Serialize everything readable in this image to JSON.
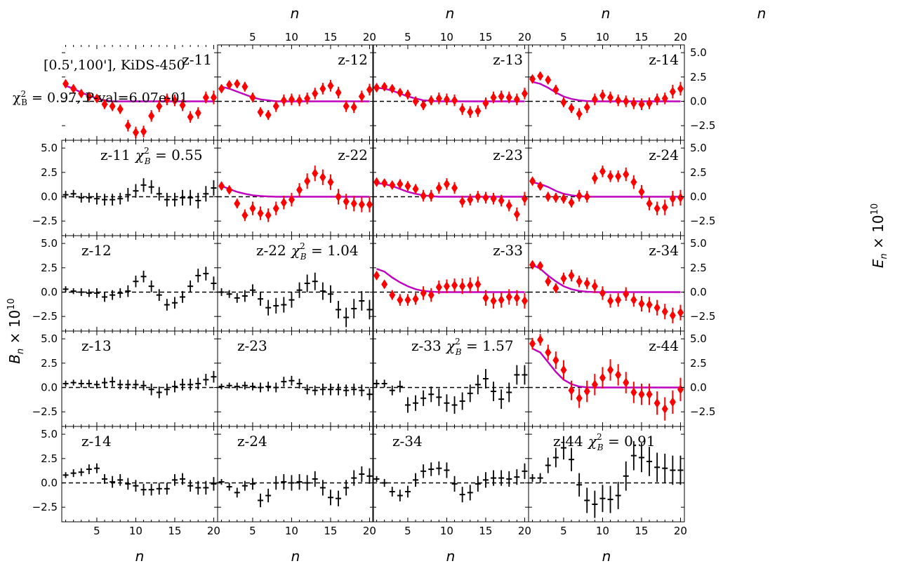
{
  "info": {
    "range_label": "[0.5',100'],  KiDS-450",
    "chi2_label": "χ²_B = 0.97, P-val=6.07e-01"
  },
  "axes": {
    "x_label": "n",
    "left_y_label": "B_n × 10^10",
    "right_y_label": "E_n × 10^10",
    "x_ticks": [
      5,
      10,
      15,
      20
    ],
    "y_ticks": [
      "5.0",
      "2.5",
      "0.0",
      "−2.5"
    ]
  },
  "colors": {
    "e_mode": "#ff0000",
    "b_mode": "#000000",
    "model": "#bf00bf",
    "zero_line": "#000000"
  },
  "chart_data": {
    "type": "scatter",
    "x": [
      1,
      2,
      3,
      4,
      5,
      6,
      7,
      8,
      9,
      10,
      11,
      12,
      13,
      14,
      15,
      16,
      17,
      18,
      19,
      20
    ],
    "xlim": [
      0.5,
      20.5
    ],
    "ylim": [
      -4.0,
      5.8
    ],
    "e_mode_panels": [
      {
        "label": "z-11",
        "row": 0,
        "col": 0,
        "values": [
          1.8,
          1.3,
          0.8,
          0.5,
          0.3,
          -0.3,
          -0.5,
          -0.8,
          -2.5,
          -3.2,
          -3.1,
          -1.5,
          -0.5,
          0.2,
          0.1,
          -0.4,
          -1.6,
          -1.2,
          0.4,
          0.4
        ],
        "errors": [
          0.4,
          0.4,
          0.4,
          0.4,
          0.4,
          0.5,
          0.5,
          0.5,
          0.6,
          0.6,
          0.6,
          0.6,
          0.6,
          0.6,
          0.6,
          0.6,
          0.6,
          0.6,
          0.6,
          0.7
        ],
        "model": [
          1.6,
          1.3,
          0.9,
          0.6,
          0.3,
          0.1,
          0.0,
          0,
          0,
          0,
          0,
          0,
          0,
          0,
          0,
          0,
          0,
          0,
          0,
          0
        ]
      },
      {
        "label": "z-12",
        "row": 0,
        "col": 1,
        "values": [
          1.3,
          1.7,
          1.8,
          1.5,
          0.4,
          -1.1,
          -1.4,
          -0.5,
          0.1,
          0.2,
          0.1,
          0.3,
          0.8,
          1.3,
          1.6,
          0.9,
          -0.5,
          -0.6,
          0.5,
          1.2
        ],
        "errors": [
          0.4,
          0.4,
          0.4,
          0.5,
          0.5,
          0.5,
          0.5,
          0.6,
          0.6,
          0.6,
          0.6,
          0.6,
          0.6,
          0.6,
          0.6,
          0.6,
          0.6,
          0.6,
          0.6,
          0.6
        ],
        "model": [
          1.5,
          1.3,
          1.0,
          0.7,
          0.4,
          0.2,
          0.1,
          0,
          0,
          0,
          0,
          0,
          0,
          0,
          0,
          0,
          0,
          0,
          0,
          0
        ]
      },
      {
        "label": "z-13",
        "row": 0,
        "col": 2,
        "values": [
          1.4,
          1.5,
          1.3,
          0.9,
          0.7,
          0.0,
          -0.4,
          0.1,
          0.3,
          0.2,
          0.1,
          -0.8,
          -1.1,
          -1.0,
          -0.2,
          0.4,
          0.5,
          0.4,
          0.2,
          0.8
        ],
        "errors": [
          0.4,
          0.4,
          0.4,
          0.4,
          0.5,
          0.5,
          0.5,
          0.5,
          0.6,
          0.6,
          0.6,
          0.6,
          0.6,
          0.6,
          0.6,
          0.6,
          0.6,
          0.6,
          0.6,
          0.6
        ],
        "model": [
          1.4,
          1.3,
          1.1,
          0.8,
          0.5,
          0.3,
          0.1,
          0.05,
          0,
          0,
          0,
          0,
          0,
          0,
          0,
          0,
          0,
          0,
          0,
          0
        ]
      },
      {
        "label": "z-14",
        "row": 0,
        "col": 3,
        "values": [
          2.3,
          2.6,
          2.2,
          1.2,
          -0.1,
          -0.7,
          -1.3,
          -0.6,
          0.2,
          0.6,
          0.4,
          0.1,
          0.0,
          -0.2,
          -0.3,
          -0.2,
          0.2,
          0.3,
          1.0,
          1.3
        ],
        "errors": [
          0.4,
          0.4,
          0.4,
          0.5,
          0.5,
          0.5,
          0.6,
          0.6,
          0.6,
          0.6,
          0.6,
          0.6,
          0.6,
          0.6,
          0.6,
          0.6,
          0.6,
          0.6,
          0.7,
          0.7
        ],
        "model": [
          2.0,
          1.8,
          1.4,
          0.9,
          0.5,
          0.25,
          0.1,
          0.03,
          0,
          0,
          0,
          0,
          0,
          0,
          0,
          0,
          0,
          0,
          0,
          0
        ]
      },
      {
        "label": "z-22",
        "row": 1,
        "col": 1,
        "values": [
          1.1,
          0.7,
          -0.7,
          -1.9,
          -1.2,
          -1.7,
          -1.9,
          -1.2,
          -0.6,
          -0.3,
          0.7,
          1.6,
          2.4,
          2.0,
          1.5,
          0.0,
          -0.5,
          -0.7,
          -0.8,
          -0.8
        ],
        "errors": [
          0.4,
          0.4,
          0.5,
          0.6,
          0.7,
          0.7,
          0.7,
          0.7,
          0.7,
          0.7,
          0.7,
          0.8,
          0.8,
          0.8,
          0.8,
          0.8,
          0.8,
          0.8,
          0.8,
          0.8
        ],
        "model": [
          1.1,
          0.8,
          0.5,
          0.3,
          0.15,
          0.07,
          0.03,
          0,
          0,
          0,
          0,
          0,
          0,
          0,
          0,
          0,
          0,
          0,
          0,
          0
        ]
      },
      {
        "label": "z-23",
        "row": 1,
        "col": 2,
        "values": [
          1.5,
          1.4,
          1.2,
          1.3,
          1.1,
          0.8,
          0.1,
          0.1,
          0.9,
          1.3,
          0.9,
          -0.5,
          -0.3,
          0.0,
          -0.1,
          -0.2,
          -0.4,
          -0.9,
          -1.8,
          -0.2
        ],
        "errors": [
          0.4,
          0.4,
          0.4,
          0.5,
          0.5,
          0.5,
          0.6,
          0.6,
          0.6,
          0.6,
          0.6,
          0.6,
          0.6,
          0.6,
          0.6,
          0.6,
          0.6,
          0.6,
          0.7,
          0.7
        ],
        "model": [
          1.4,
          1.3,
          1.1,
          0.8,
          0.5,
          0.3,
          0.15,
          0.05,
          0,
          0,
          0,
          0,
          0,
          0,
          0,
          0,
          0,
          0,
          0,
          0
        ]
      },
      {
        "label": "z-24",
        "row": 1,
        "col": 3,
        "values": [
          1.6,
          1.1,
          0.0,
          -0.1,
          -0.2,
          -0.6,
          0.1,
          0.0,
          1.9,
          2.6,
          2.1,
          2.1,
          2.3,
          1.5,
          0.5,
          -0.7,
          -1.2,
          -1.1,
          -0.2,
          -0.1
        ],
        "errors": [
          0.4,
          0.4,
          0.5,
          0.5,
          0.5,
          0.5,
          0.6,
          0.6,
          0.6,
          0.6,
          0.6,
          0.6,
          0.7,
          0.7,
          0.7,
          0.7,
          0.7,
          0.8,
          0.8,
          0.8
        ],
        "model": [
          1.5,
          1.3,
          1.0,
          0.6,
          0.3,
          0.15,
          0.05,
          0,
          0,
          0,
          0,
          0,
          0,
          0,
          0,
          0,
          0,
          0,
          0,
          0
        ]
      },
      {
        "label": "z-33",
        "row": 2,
        "col": 2,
        "values": [
          1.7,
          0.8,
          -0.3,
          -0.8,
          -0.8,
          -0.7,
          -0.1,
          -0.3,
          0.5,
          0.6,
          0.7,
          0.6,
          0.7,
          0.8,
          -0.6,
          -0.9,
          -0.8,
          -0.5,
          -0.6,
          -0.9
        ],
        "errors": [
          0.4,
          0.4,
          0.5,
          0.6,
          0.6,
          0.6,
          0.7,
          0.7,
          0.7,
          0.7,
          0.7,
          0.8,
          0.8,
          0.8,
          0.8,
          0.8,
          0.8,
          0.8,
          0.8,
          0.8
        ],
        "model": [
          2.4,
          2.1,
          1.5,
          1.0,
          0.6,
          0.3,
          0.12,
          0.05,
          0,
          0,
          0,
          0,
          0,
          0,
          0,
          0,
          0,
          0,
          0,
          0
        ]
      },
      {
        "label": "z-34",
        "row": 2,
        "col": 3,
        "values": [
          2.8,
          2.7,
          1.1,
          0.4,
          1.4,
          1.7,
          1.1,
          0.9,
          0.6,
          -0.1,
          -0.9,
          -0.8,
          -0.2,
          -0.8,
          -1.2,
          -1.3,
          -1.6,
          -2.0,
          -2.4,
          -2.1
        ],
        "errors": [
          0.4,
          0.4,
          0.5,
          0.5,
          0.6,
          0.6,
          0.6,
          0.6,
          0.7,
          0.7,
          0.7,
          0.7,
          0.7,
          0.7,
          0.8,
          0.8,
          0.8,
          0.8,
          0.8,
          0.8
        ],
        "model": [
          2.8,
          2.4,
          1.7,
          1.1,
          0.6,
          0.3,
          0.12,
          0.04,
          0,
          0,
          0,
          0,
          0,
          0,
          0,
          0,
          0,
          0,
          0,
          0
        ]
      },
      {
        "label": "z-44",
        "row": 3,
        "col": 3,
        "values": [
          4.5,
          4.9,
          3.6,
          2.8,
          1.8,
          -0.3,
          -1.1,
          -0.4,
          0.3,
          1.0,
          1.8,
          1.3,
          0.5,
          -0.5,
          -0.7,
          -0.7,
          -1.6,
          -2.2,
          -1.5,
          -0.2
        ],
        "errors": [
          0.6,
          0.6,
          0.8,
          0.9,
          1.0,
          1.0,
          1.0,
          1.1,
          1.1,
          1.1,
          1.1,
          1.1,
          1.1,
          1.1,
          1.1,
          1.1,
          1.2,
          1.2,
          1.2,
          1.2
        ],
        "model": [
          4.0,
          3.6,
          2.6,
          1.6,
          0.8,
          0.35,
          0.1,
          0.02,
          0,
          0,
          0,
          0,
          0,
          0,
          0,
          0,
          0,
          0,
          0,
          0
        ]
      }
    ],
    "b_mode_panels": [
      {
        "label": "z-11",
        "chi2": "0.55",
        "row": 1,
        "col": 0,
        "values": [
          0.2,
          0.3,
          -0.1,
          -0.1,
          -0.2,
          -0.3,
          -0.3,
          -0.2,
          0.2,
          0.6,
          1.2,
          1.0,
          0.3,
          -0.3,
          -0.3,
          -0.1,
          -0.1,
          -0.4,
          0.3,
          0.9
        ],
        "errors": [
          0.4,
          0.4,
          0.5,
          0.5,
          0.6,
          0.6,
          0.6,
          0.6,
          0.7,
          0.7,
          0.7,
          0.7,
          0.7,
          0.7,
          0.7,
          0.8,
          0.8,
          0.8,
          0.8,
          0.8
        ]
      },
      {
        "label": "z-12",
        "row": 2,
        "col": 0,
        "values": [
          0.3,
          0.1,
          0.0,
          -0.1,
          -0.1,
          -0.5,
          -0.3,
          -0.1,
          0.1,
          1.1,
          1.6,
          0.6,
          -0.3,
          -1.3,
          -1.1,
          -0.5,
          0.6,
          1.7,
          1.9,
          0.9
        ],
        "errors": [
          0.3,
          0.3,
          0.4,
          0.4,
          0.5,
          0.5,
          0.5,
          0.5,
          0.6,
          0.6,
          0.6,
          0.6,
          0.6,
          0.6,
          0.6,
          0.6,
          0.6,
          0.7,
          0.7,
          0.7
        ]
      },
      {
        "label": "z-22",
        "chi2": "1.04",
        "row": 2,
        "col": 1,
        "values": [
          0.0,
          -0.2,
          -0.6,
          -0.4,
          0.2,
          -0.7,
          -1.6,
          -1.4,
          -1.3,
          -0.8,
          0.2,
          0.9,
          1.1,
          0.1,
          -0.2,
          -1.8,
          -2.6,
          -1.7,
          -0.9,
          -1.8
        ],
        "errors": [
          0.4,
          0.4,
          0.5,
          0.6,
          0.6,
          0.7,
          0.8,
          0.8,
          0.8,
          0.8,
          0.8,
          0.9,
          0.9,
          0.9,
          0.9,
          0.9,
          1.0,
          1.0,
          1.0,
          1.0
        ]
      },
      {
        "label": "z-13",
        "row": 3,
        "col": 0,
        "values": [
          0.4,
          0.5,
          0.4,
          0.4,
          0.3,
          0.5,
          0.6,
          0.3,
          0.3,
          0.3,
          0.2,
          -0.2,
          -0.5,
          -0.2,
          0.1,
          0.3,
          0.3,
          0.4,
          0.8,
          1.1
        ],
        "errors": [
          0.3,
          0.3,
          0.4,
          0.4,
          0.4,
          0.5,
          0.5,
          0.5,
          0.5,
          0.5,
          0.5,
          0.6,
          0.6,
          0.6,
          0.6,
          0.6,
          0.6,
          0.6,
          0.6,
          0.6
        ]
      },
      {
        "label": "z-23",
        "row": 3,
        "col": 1,
        "values": [
          0.1,
          0.2,
          0.1,
          0.2,
          0.1,
          0.0,
          0.1,
          0.0,
          0.6,
          0.7,
          0.4,
          -0.2,
          -0.3,
          -0.2,
          -0.2,
          -0.2,
          -0.3,
          -0.2,
          -0.3,
          -0.7
        ],
        "errors": [
          0.3,
          0.3,
          0.4,
          0.4,
          0.4,
          0.5,
          0.5,
          0.5,
          0.5,
          0.5,
          0.5,
          0.5,
          0.5,
          0.6,
          0.6,
          0.6,
          0.6,
          0.6,
          0.6,
          0.6
        ]
      },
      {
        "label": "z-33",
        "chi2": "1.57",
        "row": 3,
        "col": 2,
        "values": [
          0.4,
          0.4,
          -0.3,
          0.1,
          -1.8,
          -1.6,
          -1.1,
          -0.7,
          -1.0,
          -1.6,
          -1.8,
          -1.4,
          -0.6,
          0.3,
          0.9,
          -0.4,
          -1.2,
          -0.5,
          1.3,
          1.3
        ],
        "errors": [
          0.4,
          0.4,
          0.5,
          0.6,
          0.8,
          0.8,
          0.8,
          0.8,
          0.9,
          0.9,
          0.9,
          0.9,
          0.9,
          1.0,
          1.0,
          1.0,
          1.0,
          1.0,
          1.0,
          1.0
        ]
      },
      {
        "label": "z-14",
        "row": 4,
        "col": 0,
        "values": [
          0.8,
          1.0,
          1.1,
          1.4,
          1.5,
          0.4,
          0.1,
          0.3,
          -0.1,
          -0.3,
          -0.7,
          -0.7,
          -0.6,
          -0.6,
          0.3,
          0.4,
          -0.3,
          -0.5,
          -0.5,
          -0.1
        ],
        "errors": [
          0.3,
          0.4,
          0.4,
          0.5,
          0.5,
          0.5,
          0.6,
          0.6,
          0.6,
          0.6,
          0.6,
          0.6,
          0.6,
          0.6,
          0.6,
          0.6,
          0.6,
          0.7,
          0.7,
          0.7
        ]
      },
      {
        "label": "z-24",
        "row": 4,
        "col": 1,
        "values": [
          0.1,
          -0.4,
          -1.0,
          -0.3,
          -0.1,
          -1.8,
          -1.3,
          0.0,
          0.1,
          0.0,
          0.1,
          0.0,
          0.4,
          -0.5,
          -1.5,
          -1.6,
          -0.5,
          0.5,
          0.9,
          0.7
        ],
        "errors": [
          0.3,
          0.4,
          0.5,
          0.5,
          0.6,
          0.7,
          0.7,
          0.7,
          0.8,
          0.8,
          0.8,
          0.8,
          0.8,
          0.8,
          0.8,
          0.8,
          0.8,
          0.8,
          0.8,
          0.8
        ]
      },
      {
        "label": "z-34",
        "row": 4,
        "col": 2,
        "values": [
          0.4,
          0.0,
          -0.9,
          -1.3,
          -0.9,
          0.3,
          1.2,
          1.4,
          1.5,
          1.3,
          -0.1,
          -1.2,
          -1.0,
          -0.1,
          0.3,
          0.5,
          0.5,
          0.4,
          0.6,
          1.2
        ],
        "errors": [
          0.3,
          0.4,
          0.5,
          0.6,
          0.6,
          0.7,
          0.7,
          0.7,
          0.7,
          0.8,
          0.8,
          0.8,
          0.8,
          0.8,
          0.8,
          0.8,
          0.8,
          0.8,
          0.8,
          0.8
        ]
      },
      {
        "label": "z-44",
        "chi2": "0.91",
        "row": 4,
        "col": 3,
        "values": [
          0.5,
          0.5,
          1.8,
          2.6,
          3.6,
          2.4,
          -0.2,
          -1.8,
          -2.2,
          -1.6,
          -1.7,
          -1.3,
          0.7,
          2.8,
          2.6,
          2.2,
          1.6,
          1.5,
          1.3,
          1.3
        ],
        "errors": [
          0.4,
          0.5,
          0.8,
          1.0,
          1.2,
          1.2,
          1.2,
          1.3,
          1.4,
          1.4,
          1.4,
          1.4,
          1.5,
          1.5,
          1.5,
          1.5,
          1.5,
          1.5,
          1.5,
          1.5
        ]
      }
    ]
  }
}
